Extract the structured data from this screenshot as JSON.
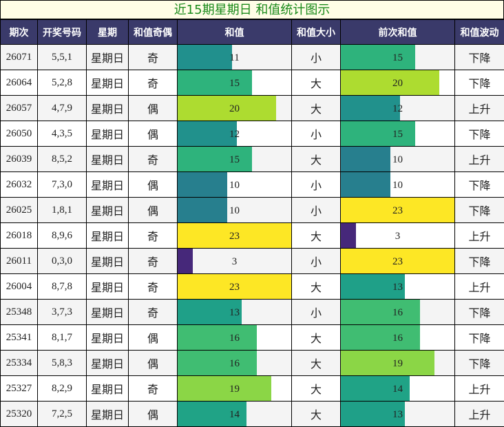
{
  "title": "近15期星期日 和值统计图示",
  "headers": [
    "期次",
    "开奖号码",
    "星期",
    "和值奇偶",
    "和值",
    "和值大小",
    "前次和值",
    "和值波动"
  ],
  "bar_max": 23,
  "color_scale": {
    "3": "#46287a",
    "10": "#277f8e",
    "11": "#21908d",
    "12": "#21918c",
    "13": "#1fa088",
    "14": "#20a386",
    "15": "#2eb37c",
    "16": "#40bd72",
    "19": "#8bd646",
    "20": "#addc30",
    "23": "#fde725"
  },
  "rows": [
    {
      "issue": "26071",
      "numbers": "5,5,1",
      "weekday": "星期日",
      "parity": "奇",
      "sum": 11,
      "size": "小",
      "prev_sum": 15,
      "trend": "下降"
    },
    {
      "issue": "26064",
      "numbers": "5,2,8",
      "weekday": "星期日",
      "parity": "奇",
      "sum": 15,
      "size": "大",
      "prev_sum": 20,
      "trend": "下降"
    },
    {
      "issue": "26057",
      "numbers": "4,7,9",
      "weekday": "星期日",
      "parity": "偶",
      "sum": 20,
      "size": "大",
      "prev_sum": 12,
      "trend": "上升"
    },
    {
      "issue": "26050",
      "numbers": "4,3,5",
      "weekday": "星期日",
      "parity": "偶",
      "sum": 12,
      "size": "小",
      "prev_sum": 15,
      "trend": "下降"
    },
    {
      "issue": "26039",
      "numbers": "8,5,2",
      "weekday": "星期日",
      "parity": "奇",
      "sum": 15,
      "size": "大",
      "prev_sum": 10,
      "trend": "上升"
    },
    {
      "issue": "26032",
      "numbers": "7,3,0",
      "weekday": "星期日",
      "parity": "偶",
      "sum": 10,
      "size": "小",
      "prev_sum": 10,
      "trend": "下降"
    },
    {
      "issue": "26025",
      "numbers": "1,8,1",
      "weekday": "星期日",
      "parity": "偶",
      "sum": 10,
      "size": "小",
      "prev_sum": 23,
      "trend": "下降"
    },
    {
      "issue": "26018",
      "numbers": "8,9,6",
      "weekday": "星期日",
      "parity": "奇",
      "sum": 23,
      "size": "大",
      "prev_sum": 3,
      "trend": "上升"
    },
    {
      "issue": "26011",
      "numbers": "0,3,0",
      "weekday": "星期日",
      "parity": "奇",
      "sum": 3,
      "size": "小",
      "prev_sum": 23,
      "trend": "下降"
    },
    {
      "issue": "26004",
      "numbers": "8,7,8",
      "weekday": "星期日",
      "parity": "奇",
      "sum": 23,
      "size": "大",
      "prev_sum": 13,
      "trend": "上升"
    },
    {
      "issue": "25348",
      "numbers": "3,7,3",
      "weekday": "星期日",
      "parity": "奇",
      "sum": 13,
      "size": "小",
      "prev_sum": 16,
      "trend": "下降"
    },
    {
      "issue": "25341",
      "numbers": "8,1,7",
      "weekday": "星期日",
      "parity": "偶",
      "sum": 16,
      "size": "大",
      "prev_sum": 16,
      "trend": "下降"
    },
    {
      "issue": "25334",
      "numbers": "5,8,3",
      "weekday": "星期日",
      "parity": "偶",
      "sum": 16,
      "size": "大",
      "prev_sum": 19,
      "trend": "下降"
    },
    {
      "issue": "25327",
      "numbers": "8,2,9",
      "weekday": "星期日",
      "parity": "奇",
      "sum": 19,
      "size": "大",
      "prev_sum": 14,
      "trend": "上升"
    },
    {
      "issue": "25320",
      "numbers": "7,2,5",
      "weekday": "星期日",
      "parity": "偶",
      "sum": 14,
      "size": "大",
      "prev_sum": 13,
      "trend": "上升"
    }
  ],
  "chart_data": {
    "type": "table",
    "title": "近15期星期日 和值统计图示",
    "columns": [
      "期次",
      "开奖号码",
      "星期",
      "和值奇偶",
      "和值",
      "和值大小",
      "前次和值",
      "和值波动"
    ],
    "categories": [
      "26071",
      "26064",
      "26057",
      "26050",
      "26039",
      "26032",
      "26025",
      "26018",
      "26011",
      "26004",
      "25348",
      "25341",
      "25334",
      "25327",
      "25320"
    ],
    "series": [
      {
        "name": "和值",
        "values": [
          11,
          15,
          20,
          12,
          15,
          10,
          10,
          23,
          3,
          23,
          13,
          16,
          16,
          19,
          14
        ]
      },
      {
        "name": "前次和值",
        "values": [
          15,
          20,
          12,
          15,
          10,
          10,
          23,
          3,
          23,
          13,
          16,
          16,
          19,
          14,
          13
        ]
      }
    ],
    "xlim": [
      0,
      23
    ],
    "grid": true,
    "legend": "none"
  }
}
